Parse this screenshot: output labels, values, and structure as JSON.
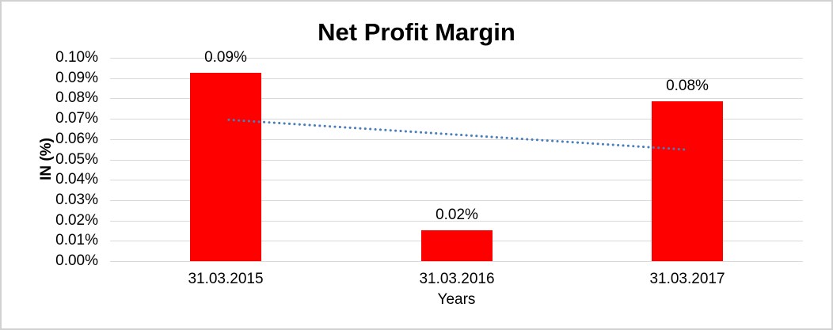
{
  "chart_data": {
    "type": "bar",
    "title": "Net Profit Margin",
    "xlabel": "Years",
    "ylabel": "IN (%)",
    "categories": [
      "31.03.2015",
      "31.03.2016",
      "31.03.2017"
    ],
    "values": [
      0.0926,
      0.0152,
      0.0786
    ],
    "data_labels": [
      "0.09%",
      "0.02%",
      "0.08%"
    ],
    "ylim": [
      0,
      0.1
    ],
    "ytick_labels_top_to_bottom": [
      "0.10%",
      "0.09%",
      "0.08%",
      "0.07%",
      "0.06%",
      "0.05%",
      "0.04%",
      "0.03%",
      "0.02%",
      "0.01%",
      "0.00%"
    ],
    "grid": true,
    "legend": "none",
    "bar_color": "#ff0000",
    "gridline_color": "#d9d9d9",
    "text_color": "#000000",
    "frame_border_color": "#d1d1d1",
    "trendline": {
      "type": "linear",
      "style": "dotted",
      "color": "#4a7ebb",
      "start_value": 0.0695,
      "end_value": 0.0549
    }
  }
}
